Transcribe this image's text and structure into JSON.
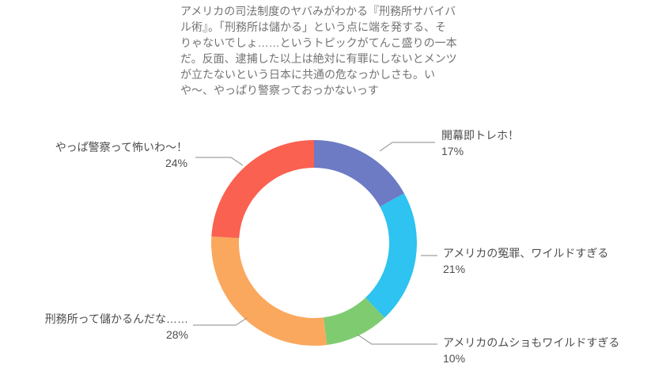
{
  "page": {
    "background": "#ffffff"
  },
  "description": {
    "lines": [
      "アメリカの司法制度のヤバみがわかる『刑務所サバイバ",
      "ル術』。「刑務所は儲かる」という点に端を発する、そ",
      "りゃないでしょ……というトピックがてんこ盛りの一本",
      "だ。反面、逮捕した以上は絶対に有罪にしないとメンツ",
      "が立たないという日本に共通の危なっかしさも。い",
      "や〜、やっぱり警察っておっかないっす"
    ]
  },
  "chart_data": {
    "type": "pie",
    "subtype": "donut",
    "title": "",
    "legend": "none",
    "direction": "clockwise",
    "start_angle_deg": 0,
    "inner_radius_ratio": 0.73,
    "segments": [
      {
        "key": "kaimaku",
        "label": "開幕即トレホ！",
        "value": 17,
        "pct": "17%",
        "color": "#6d7ac4"
      },
      {
        "key": "enzai",
        "label": "アメリカの冤罪、ワイルドすぎる",
        "value": 21,
        "pct": "21%",
        "color": "#2ec3f0"
      },
      {
        "key": "musho",
        "label": "アメリカのムショもワイルドすぎる",
        "value": 10,
        "pct": "10%",
        "color": "#7fcc70"
      },
      {
        "key": "moukaru",
        "label": "刑務所って儲かるんだな……",
        "value": 28,
        "pct": "28%",
        "color": "#faa85e"
      },
      {
        "key": "keisatsu",
        "label": "やっぱ警察って怖いわ〜！",
        "value": 24,
        "pct": "24%",
        "color": "#fa6150"
      }
    ]
  },
  "colors": {
    "label_text": "#4d4d4d",
    "paragraph_text": "#737373",
    "connector_line": "#888888",
    "background": "#ffffff"
  }
}
